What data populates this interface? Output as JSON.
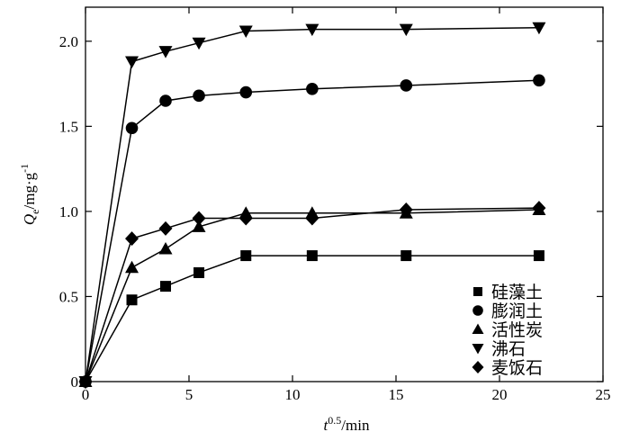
{
  "chart_data": {
    "type": "line",
    "title": "",
    "xlabel": {
      "italic": "t",
      "sup": "0.5",
      "rest": "/min"
    },
    "ylabel": {
      "italic": "Q",
      "sub": "e",
      "rest": "/mg·g",
      "sup": "-1"
    },
    "xlim": [
      0,
      25
    ],
    "ylim": [
      0,
      2.2
    ],
    "xticks": [
      0,
      5,
      10,
      15,
      20,
      25
    ],
    "yticks": [
      0,
      0.5,
      1.0,
      1.5,
      2.0
    ],
    "xtick_labels": [
      "0",
      "5",
      "10",
      "15",
      "20",
      "25"
    ],
    "ytick_labels": [
      "0",
      "0.5",
      "1.0",
      "1.5",
      "2.0"
    ],
    "legend_position": "bottom-right",
    "x": [
      0,
      2.24,
      3.87,
      5.48,
      7.75,
      10.95,
      15.49,
      21.91
    ],
    "series": [
      {
        "name": "硅藻土",
        "marker": "square",
        "values": [
          0,
          0.48,
          0.56,
          0.64,
          0.74,
          0.74,
          0.74,
          0.74
        ]
      },
      {
        "name": "膨润土",
        "marker": "circle",
        "values": [
          0,
          1.49,
          1.65,
          1.68,
          1.7,
          1.72,
          1.74,
          1.77
        ]
      },
      {
        "name": "活性炭",
        "marker": "triangle-up",
        "values": [
          0,
          0.67,
          0.78,
          0.91,
          0.99,
          0.99,
          0.99,
          1.01
        ]
      },
      {
        "name": "沸石",
        "marker": "triangle-down",
        "values": [
          0,
          1.88,
          1.94,
          1.99,
          2.06,
          2.07,
          2.07,
          2.08
        ]
      },
      {
        "name": "麦饭石",
        "marker": "diamond",
        "values": [
          0,
          0.84,
          0.9,
          0.96,
          0.96,
          0.96,
          1.01,
          1.02
        ]
      }
    ]
  }
}
